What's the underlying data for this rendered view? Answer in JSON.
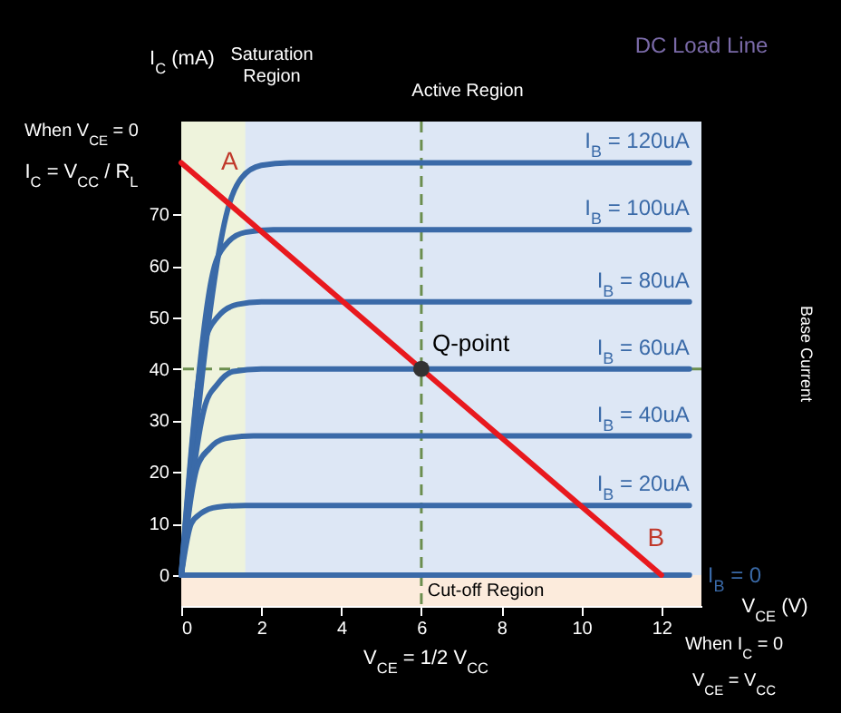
{
  "chart_data": {
    "type": "line",
    "xlabel": "V$_{CE}$ (V)",
    "ylabel": "I$_{C}$ (mA)",
    "xlim": [
      0,
      13
    ],
    "ylim": [
      -6,
      88
    ],
    "xticks": [
      0,
      2,
      4,
      6,
      8,
      10,
      12
    ],
    "yticks": [
      0,
      10,
      20,
      30,
      40,
      50,
      60,
      70
    ],
    "grid": false,
    "legend": false,
    "marker": "none",
    "line_style": "solid",
    "series": [
      {
        "name": "I$_{B}$ = 120uA",
        "color": "#3a6aa8",
        "x": [
          0,
          1.2,
          1.5,
          2.0,
          2.7,
          12.7
        ],
        "values": [
          0,
          72,
          77,
          79.5,
          80,
          80
        ]
      },
      {
        "name": "I$_{B}$ = 100uA",
        "color": "#3a6aa8",
        "x": [
          0,
          0.8,
          1.1,
          1.6,
          2.3,
          12.7
        ],
        "values": [
          0,
          59,
          64,
          66.5,
          67,
          67
        ]
      },
      {
        "name": "I$_{B}$ = 80uA",
        "color": "#3a6aa8",
        "x": [
          0,
          0.58,
          0.9,
          1.4,
          2.0,
          12.7
        ],
        "values": [
          0,
          45,
          50,
          52.5,
          53,
          53
        ]
      },
      {
        "name": "I$_{B}$ = 60uA",
        "color": "#3a6aa8",
        "x": [
          0,
          0.6,
          0.9,
          1.3,
          2.0,
          12.7
        ],
        "values": [
          0,
          33,
          37,
          39.5,
          40,
          40
        ]
      },
      {
        "name": "I$_{B}$ = 40uA",
        "color": "#3a6aa8",
        "x": [
          0,
          0.4,
          0.7,
          1.1,
          1.8,
          12.7
        ],
        "values": [
          0,
          21,
          24.5,
          26.5,
          27,
          27
        ]
      },
      {
        "name": "I$_{B}$ = 20uA",
        "color": "#3a6aa8",
        "x": [
          0,
          0.25,
          0.5,
          0.9,
          1.6,
          12.7
        ],
        "values": [
          0,
          10,
          12,
          13.2,
          13.5,
          13.5
        ]
      },
      {
        "name": "I$_{B}$ = 0",
        "color": "#3a6aa8",
        "x": [
          0,
          12.7
        ],
        "values": [
          0,
          0
        ]
      },
      {
        "type": "line",
        "color": "#e8191e",
        "x": [
          0,
          12
        ],
        "values": [
          80,
          0
        ]
      },
      {
        "type": "scatter",
        "color": "#333333",
        "marker": "circle",
        "x": [
          6
        ],
        "values": [
          40
        ]
      }
    ],
    "ref_lines": [
      {
        "axis": "y",
        "value": 40,
        "color": "#6b8e4e",
        "line_style": "dashed"
      },
      {
        "axis": "x",
        "value": 6,
        "color": "#6b8e4e",
        "line_style": "dashed"
      }
    ],
    "bands": [
      {
        "axis": "x",
        "from": 0,
        "to": 1.6,
        "label": "Saturation Region",
        "color": "#eef3dc"
      },
      {
        "axis": "y",
        "from": -6,
        "to": 0,
        "label": "Cut-off Region",
        "color": "#fcebdc"
      }
    ],
    "annotations": [
      "Active Region",
      "DC Load Line",
      {
        "text": "Q-point",
        "x": 6,
        "y": 40
      },
      {
        "text": "A",
        "x": 0,
        "y": 80
      },
      {
        "text": "B",
        "x": 12,
        "y": 0
      },
      "When V$_{CE}$ = 0",
      "I$_{C}$ = V$_{CC}$ / R$_{L}$",
      "V$_{CE}$ = 1/2 V$_{CC}$",
      "When I$_{C}$ = 0",
      "V$_{CE}$ = V$_{CC}$",
      "Base Current"
    ]
  }
}
